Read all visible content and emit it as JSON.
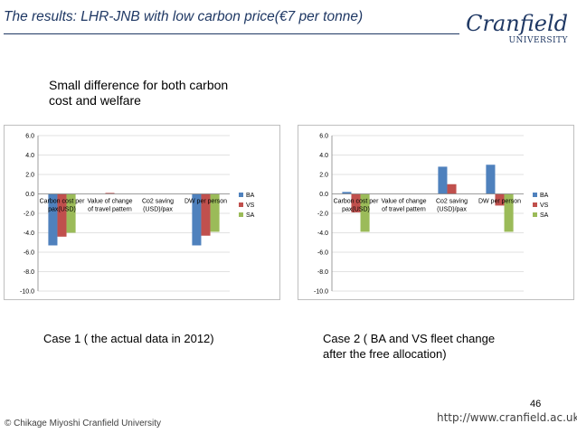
{
  "slide": {
    "title": "The results: LHR-JNB with low carbon price(€7 per tonne)",
    "logo": {
      "main": "Cranfield",
      "sub": "UNIVERSITY"
    },
    "summary_line1": "Small difference for both carbon",
    "summary_line2": "cost and welfare",
    "case1_caption": "Case 1 ( the actual data in 2012)",
    "case2_caption_line1": "Case 2 ( BA and VS fleet change",
    "case2_caption_line2": "after the free allocation)",
    "page_number": "46",
    "url": "http://www.cranfield.ac.uk",
    "copyright": "© Chikage Miyoshi Cranfield University"
  },
  "colors": {
    "BA": "#4f81bd",
    "VS": "#c0504d",
    "SA": "#9bbb59"
  },
  "chart_data": [
    {
      "type": "bar",
      "title": "Case 1 ( the actual data in 2012)",
      "categories": [
        [
          "Carbon cost per",
          "pax(USD)"
        ],
        [
          "Value of change",
          "of travel pattern"
        ],
        [
          "Co2 saving",
          "(USD)/pax"
        ],
        [
          "DW per person"
        ]
      ],
      "series": [
        {
          "name": "BA",
          "values": [
            -5.3,
            0.0,
            0.0,
            -5.3
          ]
        },
        {
          "name": "VS",
          "values": [
            -4.4,
            0.1,
            0.0,
            -4.3
          ]
        },
        {
          "name": "SA",
          "values": [
            -4.0,
            0.0,
            0.0,
            -3.9
          ]
        }
      ],
      "ylim": [
        -10,
        6
      ],
      "yticks": [
        "6.0",
        "4.0",
        "2.0",
        "0.0",
        "-2.0",
        "-4.0",
        "-6.0",
        "-8.0",
        "-10.0"
      ],
      "legend": "right",
      "grid": true
    },
    {
      "type": "bar",
      "title": "Case 2 ( BA and VS fleet change after the free allocation)",
      "categories": [
        [
          "Carbon cost per",
          "pax(USD)"
        ],
        [
          "Value of change",
          "of travel pattern"
        ],
        [
          "Co2 saving",
          "(USD)/pax"
        ],
        [
          "DW per person"
        ]
      ],
      "series": [
        {
          "name": "BA",
          "values": [
            0.2,
            0.0,
            2.8,
            3.0
          ]
        },
        {
          "name": "VS",
          "values": [
            -1.9,
            0.0,
            1.0,
            -1.2
          ]
        },
        {
          "name": "SA",
          "values": [
            -3.9,
            0.0,
            0.0,
            -3.9
          ]
        }
      ],
      "ylim": [
        -10,
        6
      ],
      "yticks": [
        "6.0",
        "4.0",
        "2.0",
        "0.0",
        "-2.0",
        "-4.0",
        "-6.0",
        "-8.0",
        "-10.0"
      ],
      "legend": "right",
      "grid": true
    }
  ]
}
